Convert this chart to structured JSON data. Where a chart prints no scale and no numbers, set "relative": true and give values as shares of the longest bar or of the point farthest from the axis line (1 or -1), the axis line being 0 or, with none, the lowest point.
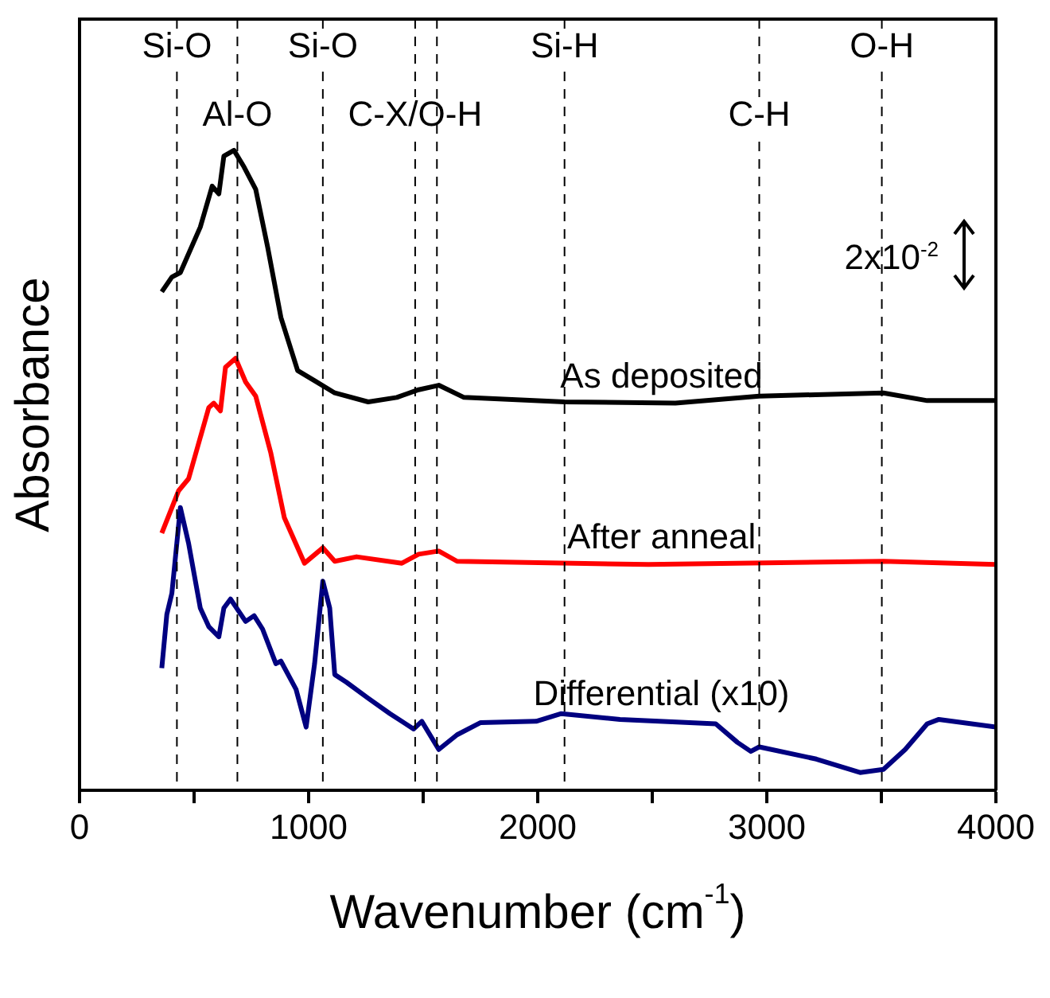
{
  "chart_data": {
    "type": "line",
    "relative": true,
    "xlabel": "Wavenumber (cm$^{-1}$)",
    "ylabel": "Absorbance",
    "xlim": [
      0,
      4000
    ],
    "xticks": [
      0,
      {
        "value": 500,
        "label": null
      },
      1000,
      {
        "value": 1500,
        "label": null
      },
      2000,
      {
        "value": 2500,
        "label": null
      },
      3000,
      {
        "value": 3500,
        "label": null
      },
      4000
    ],
    "legend": false,
    "grid": false,
    "marker": "none",
    "line_style": "solid",
    "annotations": [
      "2x10$^{-2}$"
    ],
    "ref_lines": [
      {
        "axis": "x",
        "value": 425,
        "label": "Si-O",
        "color": "#000000",
        "line_style": "dashed"
      },
      {
        "axis": "x",
        "value": 689,
        "label": "Al-O",
        "color": "#000000",
        "line_style": "dashed"
      },
      {
        "axis": "x",
        "value": 1062,
        "label": "Si-O",
        "color": "#000000",
        "line_style": "dashed"
      },
      {
        "axis": "x",
        "value": 1465,
        "label": "C-X/O-H",
        "color": "#000000",
        "line_style": "dashed"
      },
      {
        "axis": "x",
        "value": 1560,
        "label": null,
        "color": "#000000",
        "line_style": "dashed"
      },
      {
        "axis": "x",
        "value": 2117,
        "label": "Si-H",
        "color": "#000000",
        "line_style": "dashed"
      },
      {
        "axis": "x",
        "value": 2967,
        "label": "C-H",
        "color": "#000000",
        "line_style": "dashed"
      },
      {
        "axis": "x",
        "value": 3502,
        "label": "O-H",
        "color": "#000000",
        "line_style": "dashed"
      }
    ],
    "series": [
      {
        "name": "As deposited",
        "color": "#000000",
        "x": [
          359,
          403,
          440,
          527,
          579,
          608,
          630,
          674,
          718,
          769,
          821,
          879,
          952,
          1026,
          1114,
          1260,
          1385,
          1480,
          1568,
          1678,
          2117,
          2601,
          2967,
          3509,
          3700,
          4000
        ],
        "values": [
          0.779,
          0.802,
          0.809,
          0.88,
          0.944,
          0.932,
          0.991,
          1.0,
          0.974,
          0.939,
          0.849,
          0.739,
          0.656,
          0.64,
          0.621,
          0.607,
          0.614,
          0.626,
          0.633,
          0.614,
          0.607,
          0.605,
          0.616,
          0.621,
          0.609,
          0.609
        ]
      },
      {
        "name": "After anneal",
        "color": "#ff0000",
        "x": [
          359,
          432,
          476,
          564,
          586,
          615,
          637,
          681,
          725,
          769,
          835,
          894,
          982,
          1062,
          1114,
          1209,
          1407,
          1480,
          1568,
          1648,
          2483,
          3509,
          4000
        ],
        "values": [
          0.402,
          0.468,
          0.487,
          0.598,
          0.605,
          0.593,
          0.661,
          0.675,
          0.638,
          0.616,
          0.527,
          0.426,
          0.355,
          0.379,
          0.358,
          0.365,
          0.355,
          0.369,
          0.374,
          0.358,
          0.353,
          0.358,
          0.353
        ]
      },
      {
        "name": "Differential (x10)",
        "color": "#000080",
        "x": [
          359,
          381,
          403,
          440,
          476,
          527,
          564,
          608,
          630,
          659,
          725,
          762,
          799,
          857,
          879,
          945,
          989,
          1026,
          1062,
          1092,
          1114,
          1165,
          1260,
          1355,
          1458,
          1494,
          1568,
          1648,
          1751,
          1993,
          2103,
          2359,
          2777,
          2872,
          2930,
          2967,
          3216,
          3407,
          3509,
          3604,
          3700,
          3751,
          4000
        ],
        "values": [
          0.191,
          0.275,
          0.308,
          0.442,
          0.386,
          0.285,
          0.256,
          0.24,
          0.285,
          0.299,
          0.264,
          0.273,
          0.252,
          0.198,
          0.202,
          0.158,
          0.099,
          0.198,
          0.327,
          0.285,
          0.181,
          0.169,
          0.144,
          0.12,
          0.096,
          0.108,
          0.064,
          0.087,
          0.106,
          0.108,
          0.12,
          0.111,
          0.104,
          0.075,
          0.061,
          0.068,
          0.049,
          0.028,
          0.033,
          0.064,
          0.104,
          0.111,
          0.099
        ]
      }
    ]
  }
}
